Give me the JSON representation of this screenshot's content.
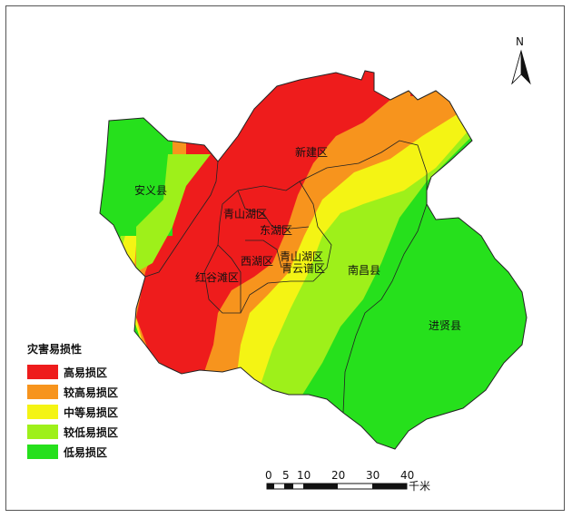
{
  "north_arrow": {
    "label": "N"
  },
  "regions": {
    "xinjian": "新建区",
    "anyi": "安义县",
    "qingshanhu": "青山湖区",
    "donghu": "东湖区",
    "qingshanhu2": "青山湖区",
    "xihu": "西湖区",
    "qingyunpu": "青云谱区",
    "wanli": "红谷滩区",
    "nanchang": "南昌县",
    "jinxian": "进贤县"
  },
  "legend": {
    "title": "灾害易损性",
    "items": [
      {
        "label": "高易损区",
        "color": "#ee1c1c"
      },
      {
        "label": "较高易损区",
        "color": "#f7941d"
      },
      {
        "label": "中等易损区",
        "color": "#f4f414"
      },
      {
        "label": "较低易损区",
        "color": "#9ef01a"
      },
      {
        "label": "低易损区",
        "color": "#26e01c"
      }
    ]
  },
  "scale_bar": {
    "ticks": [
      "0",
      "5",
      "10",
      "20",
      "30",
      "40"
    ],
    "unit": "千米"
  },
  "colors": {
    "high": "#ee1c1c",
    "mid_high": "#f7941d",
    "mid": "#f4f414",
    "mid_low": "#9ef01a",
    "low": "#26e01c"
  }
}
